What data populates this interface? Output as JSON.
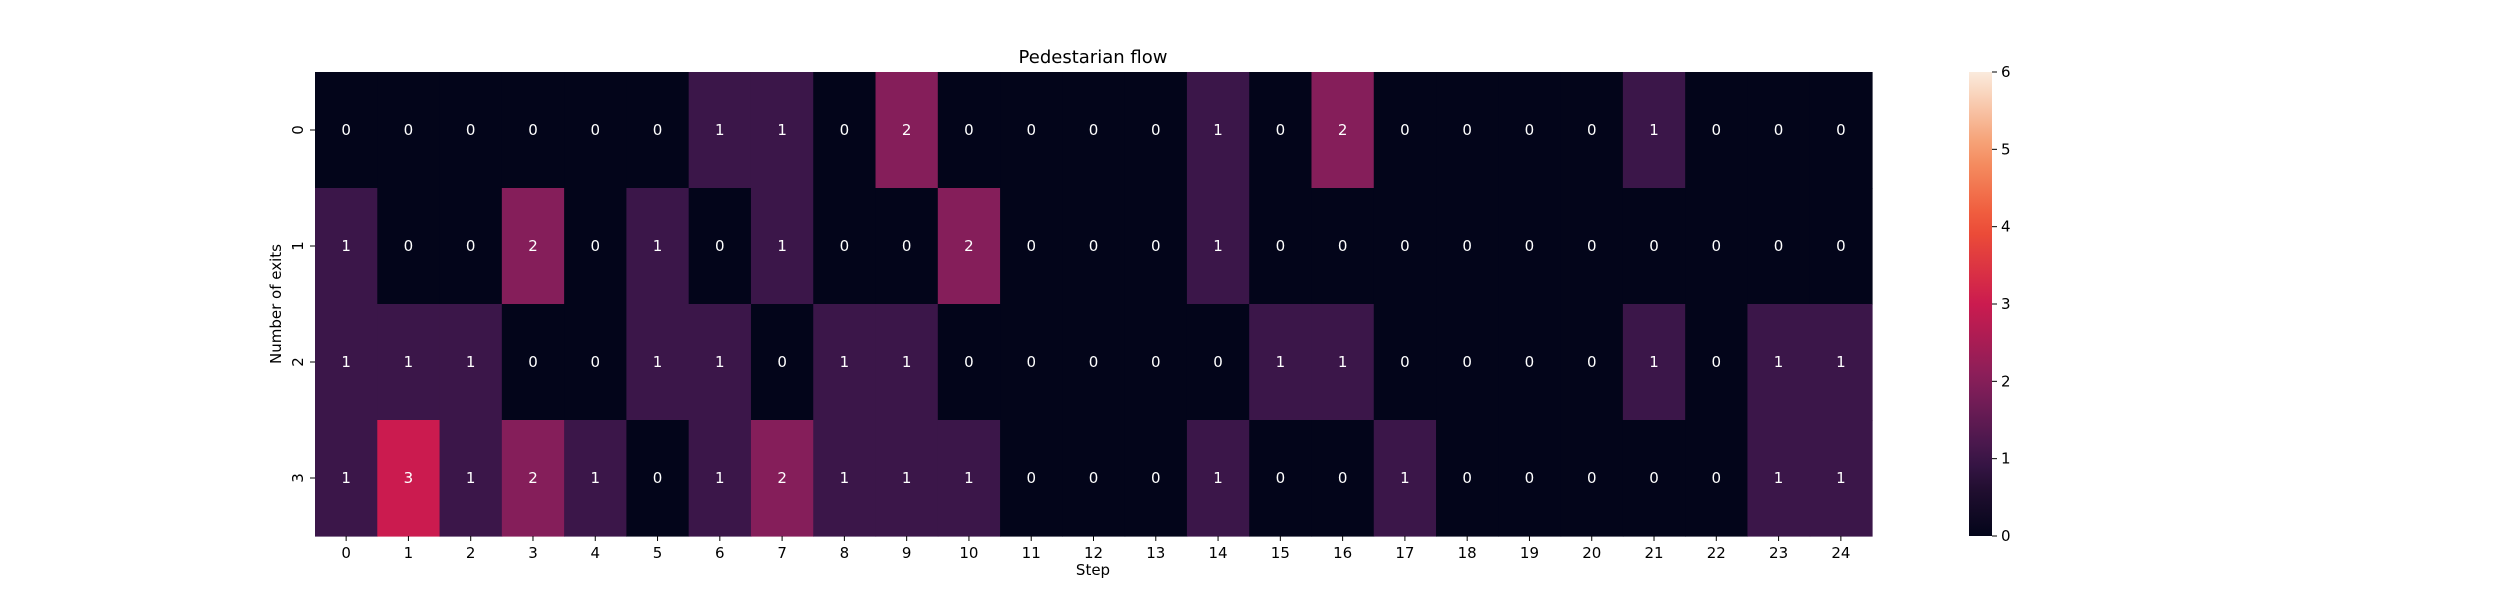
{
  "chart_data": {
    "type": "heatmap",
    "title": "Pedestarian flow",
    "xlabel": "Step",
    "ylabel": "Number of exits",
    "x": [
      "0",
      "1",
      "2",
      "3",
      "4",
      "5",
      "6",
      "7",
      "8",
      "9",
      "10",
      "11",
      "12",
      "13",
      "14",
      "15",
      "16",
      "17",
      "18",
      "19",
      "20",
      "21",
      "22",
      "23",
      "24"
    ],
    "y": [
      "0",
      "1",
      "2",
      "3"
    ],
    "values": [
      [
        0,
        0,
        0,
        0,
        0,
        0,
        1,
        1,
        0,
        2,
        0,
        0,
        0,
        0,
        1,
        0,
        2,
        0,
        0,
        0,
        0,
        1,
        0,
        0,
        0
      ],
      [
        1,
        0,
        0,
        2,
        0,
        1,
        0,
        1,
        0,
        0,
        2,
        0,
        0,
        0,
        1,
        0,
        0,
        0,
        0,
        0,
        0,
        0,
        0,
        0,
        0
      ],
      [
        1,
        1,
        1,
        0,
        0,
        1,
        1,
        0,
        1,
        1,
        0,
        0,
        0,
        0,
        0,
        1,
        1,
        0,
        0,
        0,
        0,
        1,
        0,
        1,
        1
      ],
      [
        1,
        3,
        1,
        2,
        1,
        0,
        1,
        2,
        1,
        1,
        1,
        0,
        0,
        0,
        1,
        0,
        0,
        1,
        0,
        0,
        0,
        0,
        0,
        1,
        1
      ]
    ],
    "colorbar": {
      "range": [
        0,
        6
      ],
      "ticks": [
        "0",
        "1",
        "2",
        "3",
        "4",
        "5",
        "6"
      ],
      "colormap": "rocket"
    },
    "annotations": true,
    "grid": false
  }
}
